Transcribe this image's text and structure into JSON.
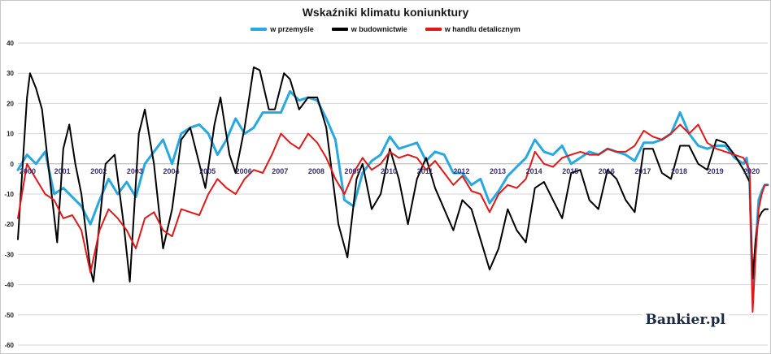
{
  "brand": "Bankier.pl",
  "chart_data": {
    "type": "line",
    "title": "Wskaźniki klimatu koniunktury",
    "xlabel": "",
    "ylabel": "",
    "ylim": [
      -60,
      40
    ],
    "yticks": [
      40,
      30,
      20,
      10,
      0,
      -10,
      -20,
      -30,
      -40,
      -50,
      -60
    ],
    "x_start": "2000-01",
    "x_end": "2020-09",
    "xtick_labels": [
      "2000",
      "2001",
      "2002",
      "2003",
      "2004",
      "2005",
      "2006",
      "2007",
      "2008",
      "2009",
      "2010",
      "2011",
      "2012",
      "2013",
      "2014",
      "2015",
      "2016",
      "2017",
      "2018",
      "2019",
      "2020"
    ],
    "grid": true,
    "legend_position": "top",
    "series": [
      {
        "name": "w przemyśle",
        "color": "#29a8e0",
        "points": [
          [
            "2000-01",
            -2
          ],
          [
            "2000-04",
            3
          ],
          [
            "2000-07",
            0
          ],
          [
            "2000-10",
            4
          ],
          [
            "2001-01",
            -10
          ],
          [
            "2001-04",
            -8
          ],
          [
            "2001-07",
            -11
          ],
          [
            "2001-10",
            -14
          ],
          [
            "2002-01",
            -20
          ],
          [
            "2002-04",
            -12
          ],
          [
            "2002-07",
            -5
          ],
          [
            "2002-10",
            -10
          ],
          [
            "2003-01",
            -6
          ],
          [
            "2003-04",
            -11
          ],
          [
            "2003-07",
            0
          ],
          [
            "2003-10",
            4
          ],
          [
            "2004-01",
            8
          ],
          [
            "2004-04",
            0
          ],
          [
            "2004-07",
            10
          ],
          [
            "2004-10",
            12
          ],
          [
            "2005-01",
            13
          ],
          [
            "2005-04",
            10
          ],
          [
            "2005-07",
            3
          ],
          [
            "2005-10",
            8
          ],
          [
            "2006-01",
            15
          ],
          [
            "2006-04",
            10
          ],
          [
            "2006-07",
            12
          ],
          [
            "2006-10",
            17
          ],
          [
            "2007-01",
            17
          ],
          [
            "2007-04",
            17
          ],
          [
            "2007-07",
            24
          ],
          [
            "2007-10",
            21
          ],
          [
            "2008-01",
            22
          ],
          [
            "2008-04",
            21
          ],
          [
            "2008-07",
            15
          ],
          [
            "2008-10",
            8
          ],
          [
            "2009-01",
            -12
          ],
          [
            "2009-04",
            -14
          ],
          [
            "2009-07",
            -3
          ],
          [
            "2009-10",
            1
          ],
          [
            "2010-01",
            3
          ],
          [
            "2010-04",
            9
          ],
          [
            "2010-07",
            5
          ],
          [
            "2010-10",
            6
          ],
          [
            "2011-01",
            7
          ],
          [
            "2011-04",
            1
          ],
          [
            "2011-07",
            4
          ],
          [
            "2011-10",
            3
          ],
          [
            "2012-01",
            -3
          ],
          [
            "2012-04",
            -3
          ],
          [
            "2012-07",
            -7
          ],
          [
            "2012-10",
            -5
          ],
          [
            "2013-01",
            -13
          ],
          [
            "2013-04",
            -9
          ],
          [
            "2013-07",
            -4
          ],
          [
            "2013-10",
            -1
          ],
          [
            "2014-01",
            2
          ],
          [
            "2014-04",
            8
          ],
          [
            "2014-07",
            4
          ],
          [
            "2014-10",
            3
          ],
          [
            "2015-01",
            6
          ],
          [
            "2015-04",
            0
          ],
          [
            "2015-07",
            2
          ],
          [
            "2015-10",
            4
          ],
          [
            "2016-01",
            3
          ],
          [
            "2016-04",
            5
          ],
          [
            "2016-07",
            4
          ],
          [
            "2016-10",
            3
          ],
          [
            "2017-01",
            1
          ],
          [
            "2017-04",
            7
          ],
          [
            "2017-07",
            7
          ],
          [
            "2017-10",
            8
          ],
          [
            "2018-01",
            10
          ],
          [
            "2018-04",
            17
          ],
          [
            "2018-07",
            10
          ],
          [
            "2018-10",
            6
          ],
          [
            "2019-01",
            5
          ],
          [
            "2019-04",
            6
          ],
          [
            "2019-07",
            6
          ],
          [
            "2019-10",
            2
          ],
          [
            "2020-01",
            0
          ],
          [
            "2020-02",
            2
          ],
          [
            "2020-03",
            -5
          ],
          [
            "2020-04",
            -44
          ],
          [
            "2020-05",
            -28
          ],
          [
            "2020-06",
            -12
          ],
          [
            "2020-07",
            -9
          ],
          [
            "2020-08",
            -7
          ],
          [
            "2020-09",
            -7
          ]
        ]
      },
      {
        "name": "w budownictwie",
        "color": "#000000",
        "points": [
          [
            "2000-01",
            -25
          ],
          [
            "2000-04",
            22
          ],
          [
            "2000-05",
            30
          ],
          [
            "2000-07",
            25
          ],
          [
            "2000-09",
            18
          ],
          [
            "2000-11",
            0
          ],
          [
            "2001-02",
            -26
          ],
          [
            "2001-04",
            5
          ],
          [
            "2001-06",
            13
          ],
          [
            "2001-08",
            0
          ],
          [
            "2001-10",
            -10
          ],
          [
            "2002-01",
            -35
          ],
          [
            "2002-02",
            -39
          ],
          [
            "2002-06",
            0
          ],
          [
            "2002-09",
            3
          ],
          [
            "2002-12",
            -20
          ],
          [
            "2003-02",
            -39
          ],
          [
            "2003-05",
            10
          ],
          [
            "2003-07",
            18
          ],
          [
            "2003-10",
            0
          ],
          [
            "2004-01",
            -28
          ],
          [
            "2004-04",
            -15
          ],
          [
            "2004-07",
            8
          ],
          [
            "2004-10",
            12
          ],
          [
            "2005-01",
            0
          ],
          [
            "2005-03",
            -8
          ],
          [
            "2005-06",
            13
          ],
          [
            "2005-08",
            22
          ],
          [
            "2005-11",
            3
          ],
          [
            "2006-01",
            -3
          ],
          [
            "2006-04",
            12
          ],
          [
            "2006-07",
            32
          ],
          [
            "2006-09",
            31
          ],
          [
            "2006-12",
            18
          ],
          [
            "2007-02",
            18
          ],
          [
            "2007-05",
            30
          ],
          [
            "2007-07",
            28
          ],
          [
            "2007-10",
            18
          ],
          [
            "2008-01",
            22
          ],
          [
            "2008-04",
            22
          ],
          [
            "2008-07",
            12
          ],
          [
            "2008-11",
            -20
          ],
          [
            "2009-02",
            -31
          ],
          [
            "2009-05",
            -5
          ],
          [
            "2009-07",
            0
          ],
          [
            "2009-10",
            -15
          ],
          [
            "2010-01",
            -10
          ],
          [
            "2010-04",
            5
          ],
          [
            "2010-07",
            -5
          ],
          [
            "2010-10",
            -20
          ],
          [
            "2011-01",
            -5
          ],
          [
            "2011-04",
            2
          ],
          [
            "2011-07",
            -8
          ],
          [
            "2011-10",
            -15
          ],
          [
            "2012-01",
            -22
          ],
          [
            "2012-04",
            -12
          ],
          [
            "2012-07",
            -15
          ],
          [
            "2012-10",
            -25
          ],
          [
            "2013-01",
            -35
          ],
          [
            "2013-04",
            -28
          ],
          [
            "2013-07",
            -15
          ],
          [
            "2013-10",
            -22
          ],
          [
            "2014-01",
            -26
          ],
          [
            "2014-04",
            -8
          ],
          [
            "2014-07",
            -6
          ],
          [
            "2014-10",
            -12
          ],
          [
            "2015-01",
            -18
          ],
          [
            "2015-04",
            -3
          ],
          [
            "2015-07",
            -2
          ],
          [
            "2015-10",
            -12
          ],
          [
            "2016-01",
            -15
          ],
          [
            "2016-04",
            -2
          ],
          [
            "2016-07",
            -5
          ],
          [
            "2016-10",
            -12
          ],
          [
            "2017-01",
            -16
          ],
          [
            "2017-04",
            5
          ],
          [
            "2017-07",
            5
          ],
          [
            "2017-10",
            -3
          ],
          [
            "2018-01",
            -5
          ],
          [
            "2018-04",
            6
          ],
          [
            "2018-07",
            6
          ],
          [
            "2018-10",
            0
          ],
          [
            "2019-01",
            -2
          ],
          [
            "2019-04",
            8
          ],
          [
            "2019-07",
            7
          ],
          [
            "2019-10",
            3
          ],
          [
            "2020-01",
            -2
          ],
          [
            "2020-03",
            -6
          ],
          [
            "2020-04",
            -38
          ],
          [
            "2020-05",
            -25
          ],
          [
            "2020-06",
            -18
          ],
          [
            "2020-07",
            -16
          ],
          [
            "2020-08",
            -15
          ],
          [
            "2020-09",
            -15
          ]
        ]
      },
      {
        "name": "w handlu detalicznym",
        "color": "#e01818",
        "points": [
          [
            "2000-01",
            -18
          ],
          [
            "2000-04",
            0
          ],
          [
            "2000-07",
            -5
          ],
          [
            "2000-10",
            -10
          ],
          [
            "2001-01",
            -12
          ],
          [
            "2001-04",
            -18
          ],
          [
            "2001-07",
            -17
          ],
          [
            "2001-10",
            -22
          ],
          [
            "2002-01",
            -36
          ],
          [
            "2002-04",
            -22
          ],
          [
            "2002-07",
            -15
          ],
          [
            "2002-10",
            -18
          ],
          [
            "2003-01",
            -22
          ],
          [
            "2003-04",
            -28
          ],
          [
            "2003-07",
            -18
          ],
          [
            "2003-10",
            -16
          ],
          [
            "2004-01",
            -22
          ],
          [
            "2004-04",
            -24
          ],
          [
            "2004-07",
            -15
          ],
          [
            "2004-10",
            -16
          ],
          [
            "2005-01",
            -17
          ],
          [
            "2005-04",
            -10
          ],
          [
            "2005-07",
            -5
          ],
          [
            "2005-10",
            -8
          ],
          [
            "2006-01",
            -10
          ],
          [
            "2006-04",
            -5
          ],
          [
            "2006-07",
            -2
          ],
          [
            "2006-10",
            -3
          ],
          [
            "2007-01",
            3
          ],
          [
            "2007-04",
            10
          ],
          [
            "2007-07",
            7
          ],
          [
            "2007-10",
            5
          ],
          [
            "2008-01",
            10
          ],
          [
            "2008-04",
            7
          ],
          [
            "2008-07",
            2
          ],
          [
            "2008-10",
            -5
          ],
          [
            "2009-01",
            -10
          ],
          [
            "2009-04",
            -3
          ],
          [
            "2009-07",
            2
          ],
          [
            "2009-10",
            -2
          ],
          [
            "2010-01",
            0
          ],
          [
            "2010-04",
            4
          ],
          [
            "2010-07",
            2
          ],
          [
            "2010-10",
            3
          ],
          [
            "2011-01",
            2
          ],
          [
            "2011-04",
            -2
          ],
          [
            "2011-07",
            1
          ],
          [
            "2011-10",
            -3
          ],
          [
            "2012-01",
            -7
          ],
          [
            "2012-04",
            -4
          ],
          [
            "2012-07",
            -9
          ],
          [
            "2012-10",
            -10
          ],
          [
            "2013-01",
            -16
          ],
          [
            "2013-04",
            -10
          ],
          [
            "2013-07",
            -7
          ],
          [
            "2013-10",
            -8
          ],
          [
            "2014-01",
            -5
          ],
          [
            "2014-04",
            4
          ],
          [
            "2014-07",
            0
          ],
          [
            "2014-10",
            -1
          ],
          [
            "2015-01",
            2
          ],
          [
            "2015-04",
            3
          ],
          [
            "2015-07",
            4
          ],
          [
            "2015-10",
            3
          ],
          [
            "2016-01",
            3
          ],
          [
            "2016-04",
            5
          ],
          [
            "2016-07",
            4
          ],
          [
            "2016-10",
            4
          ],
          [
            "2017-01",
            6
          ],
          [
            "2017-04",
            11
          ],
          [
            "2017-07",
            9
          ],
          [
            "2017-10",
            8
          ],
          [
            "2018-01",
            10
          ],
          [
            "2018-04",
            13
          ],
          [
            "2018-07",
            10
          ],
          [
            "2018-10",
            13
          ],
          [
            "2019-01",
            7
          ],
          [
            "2019-04",
            5
          ],
          [
            "2019-07",
            4
          ],
          [
            "2019-10",
            3
          ],
          [
            "2020-01",
            2
          ],
          [
            "2020-03",
            -2
          ],
          [
            "2020-04",
            -49
          ],
          [
            "2020-05",
            -30
          ],
          [
            "2020-06",
            -15
          ],
          [
            "2020-07",
            -10
          ],
          [
            "2020-08",
            -7
          ],
          [
            "2020-09",
            -7
          ]
        ]
      }
    ]
  }
}
